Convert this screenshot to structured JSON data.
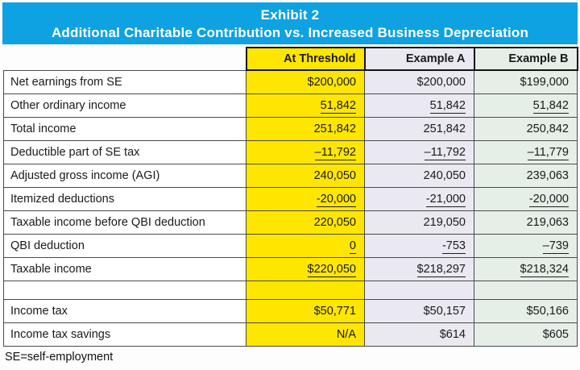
{
  "banner": {
    "title": "Exhibit 2",
    "subtitle": "Additional Charitable Contribution vs. Increased Business Depreciation",
    "bg_color": "#0ea2e3",
    "text_color": "#ffffff"
  },
  "table": {
    "columns": [
      {
        "header": "",
        "bg": "#ffffff"
      },
      {
        "header": "At Threshold",
        "bg": "#ffe600"
      },
      {
        "header": "Example A",
        "bg": "#eae8f1"
      },
      {
        "header": "Example B",
        "bg": "#e6efe7"
      }
    ],
    "rows": [
      {
        "label": "Net earnings from SE",
        "values": [
          "$200,000",
          "$200,000",
          "$199,000"
        ],
        "underline": false
      },
      {
        "label": "Other ordinary income",
        "values": [
          "51,842",
          "51,842",
          "51,842"
        ],
        "underline": true
      },
      {
        "label": "Total income",
        "values": [
          "251,842",
          "251,842",
          "250,842"
        ],
        "underline": false
      },
      {
        "label": "Deductible part of SE tax",
        "values": [
          "–11,792",
          "–11,792",
          "–11,779"
        ],
        "underline": true
      },
      {
        "label": "Adjusted gross income (AGI)",
        "values": [
          "240,050",
          "240,050",
          "239,063"
        ],
        "underline": false
      },
      {
        "label": "Itemized deductions",
        "values": [
          "-20,000",
          "-21,000",
          "-20,000"
        ],
        "underline": true
      },
      {
        "label": "Taxable income before QBI deduction",
        "values": [
          "220,050",
          "219,050",
          "219,063"
        ],
        "underline": false
      },
      {
        "label": "QBI deduction",
        "values": [
          "0",
          "-753",
          "–739"
        ],
        "underline": true
      },
      {
        "label": "Taxable income",
        "values": [
          "$220,050",
          "$218,297",
          "$218,324"
        ],
        "underline": true
      },
      {
        "label": "",
        "values": [
          "",
          "",
          ""
        ],
        "underline": false
      },
      {
        "label": "Income tax",
        "values": [
          "$50,771",
          "$50,157",
          "$50,166"
        ],
        "underline": false
      },
      {
        "label": "Income tax savings",
        "values": [
          "N/A",
          "$614",
          "$605"
        ],
        "underline": false
      }
    ]
  },
  "footnote": "SE=self-employment"
}
